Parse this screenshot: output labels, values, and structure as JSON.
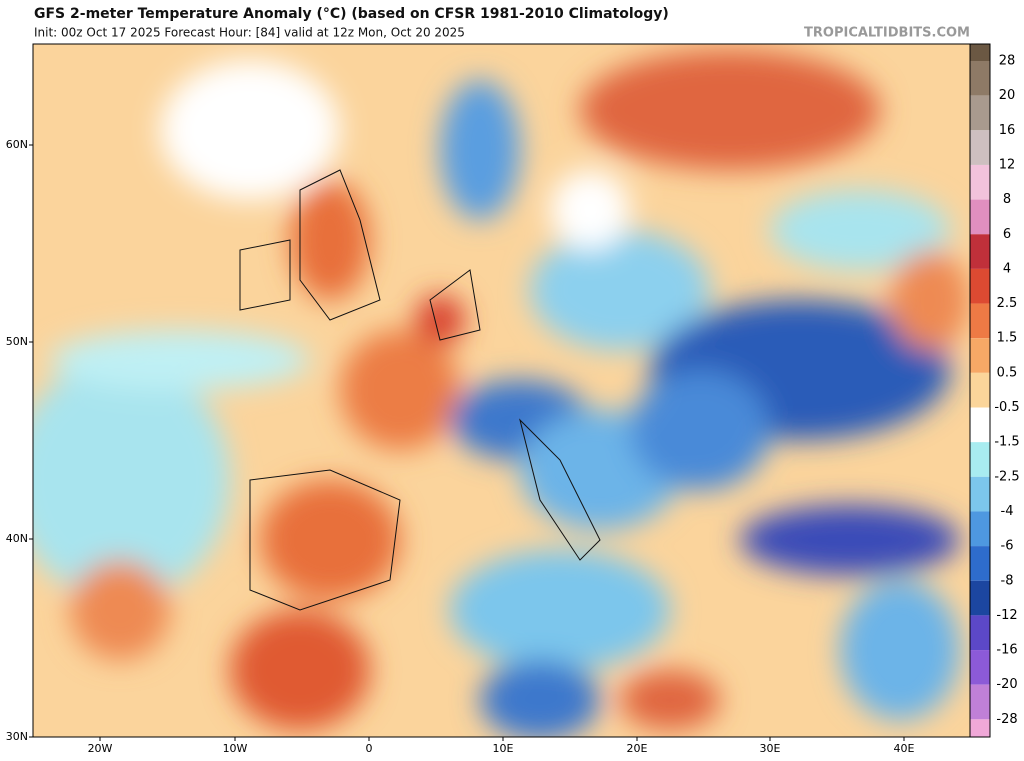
{
  "header": {
    "title": "GFS 2-meter Temperature Anomaly (°C) (based on CFSR 1981-2010 Climatology)",
    "subtitle": "Init: 00z Oct 17 2025   Forecast Hour: [84]   valid at 12z Mon, Oct 20 2025",
    "watermark": "TROPICALTIDBITS.COM"
  },
  "map": {
    "lat_labels": [
      "60N",
      "50N",
      "40N",
      "30N"
    ],
    "lon_labels": [
      "20W",
      "10W",
      "0",
      "10E",
      "20E",
      "30E",
      "40E"
    ]
  },
  "colorbar": {
    "labels": [
      28,
      20,
      16,
      12,
      8,
      6,
      4,
      2.5,
      1.5,
      0.5,
      -0.5,
      -1.5,
      -2.5,
      -4,
      -6,
      -8,
      -12,
      -16,
      -20,
      -28
    ],
    "colors": [
      "#6b5843",
      "#8e7a66",
      "#a99a8e",
      "#cdbfc0",
      "#f2c2dc",
      "#e08fbf",
      "#c0303a",
      "#dd4a32",
      "#ee7a45",
      "#f7a866",
      "#fbd59a",
      "#ffffff",
      "#a8ecf0",
      "#7cc6ec",
      "#4e98e0",
      "#2e6ccc",
      "#1c46a0",
      "#5c48c8",
      "#8c5ad8",
      "#c080d8",
      "#f0a8d8",
      "#f8d0e8"
    ]
  }
}
